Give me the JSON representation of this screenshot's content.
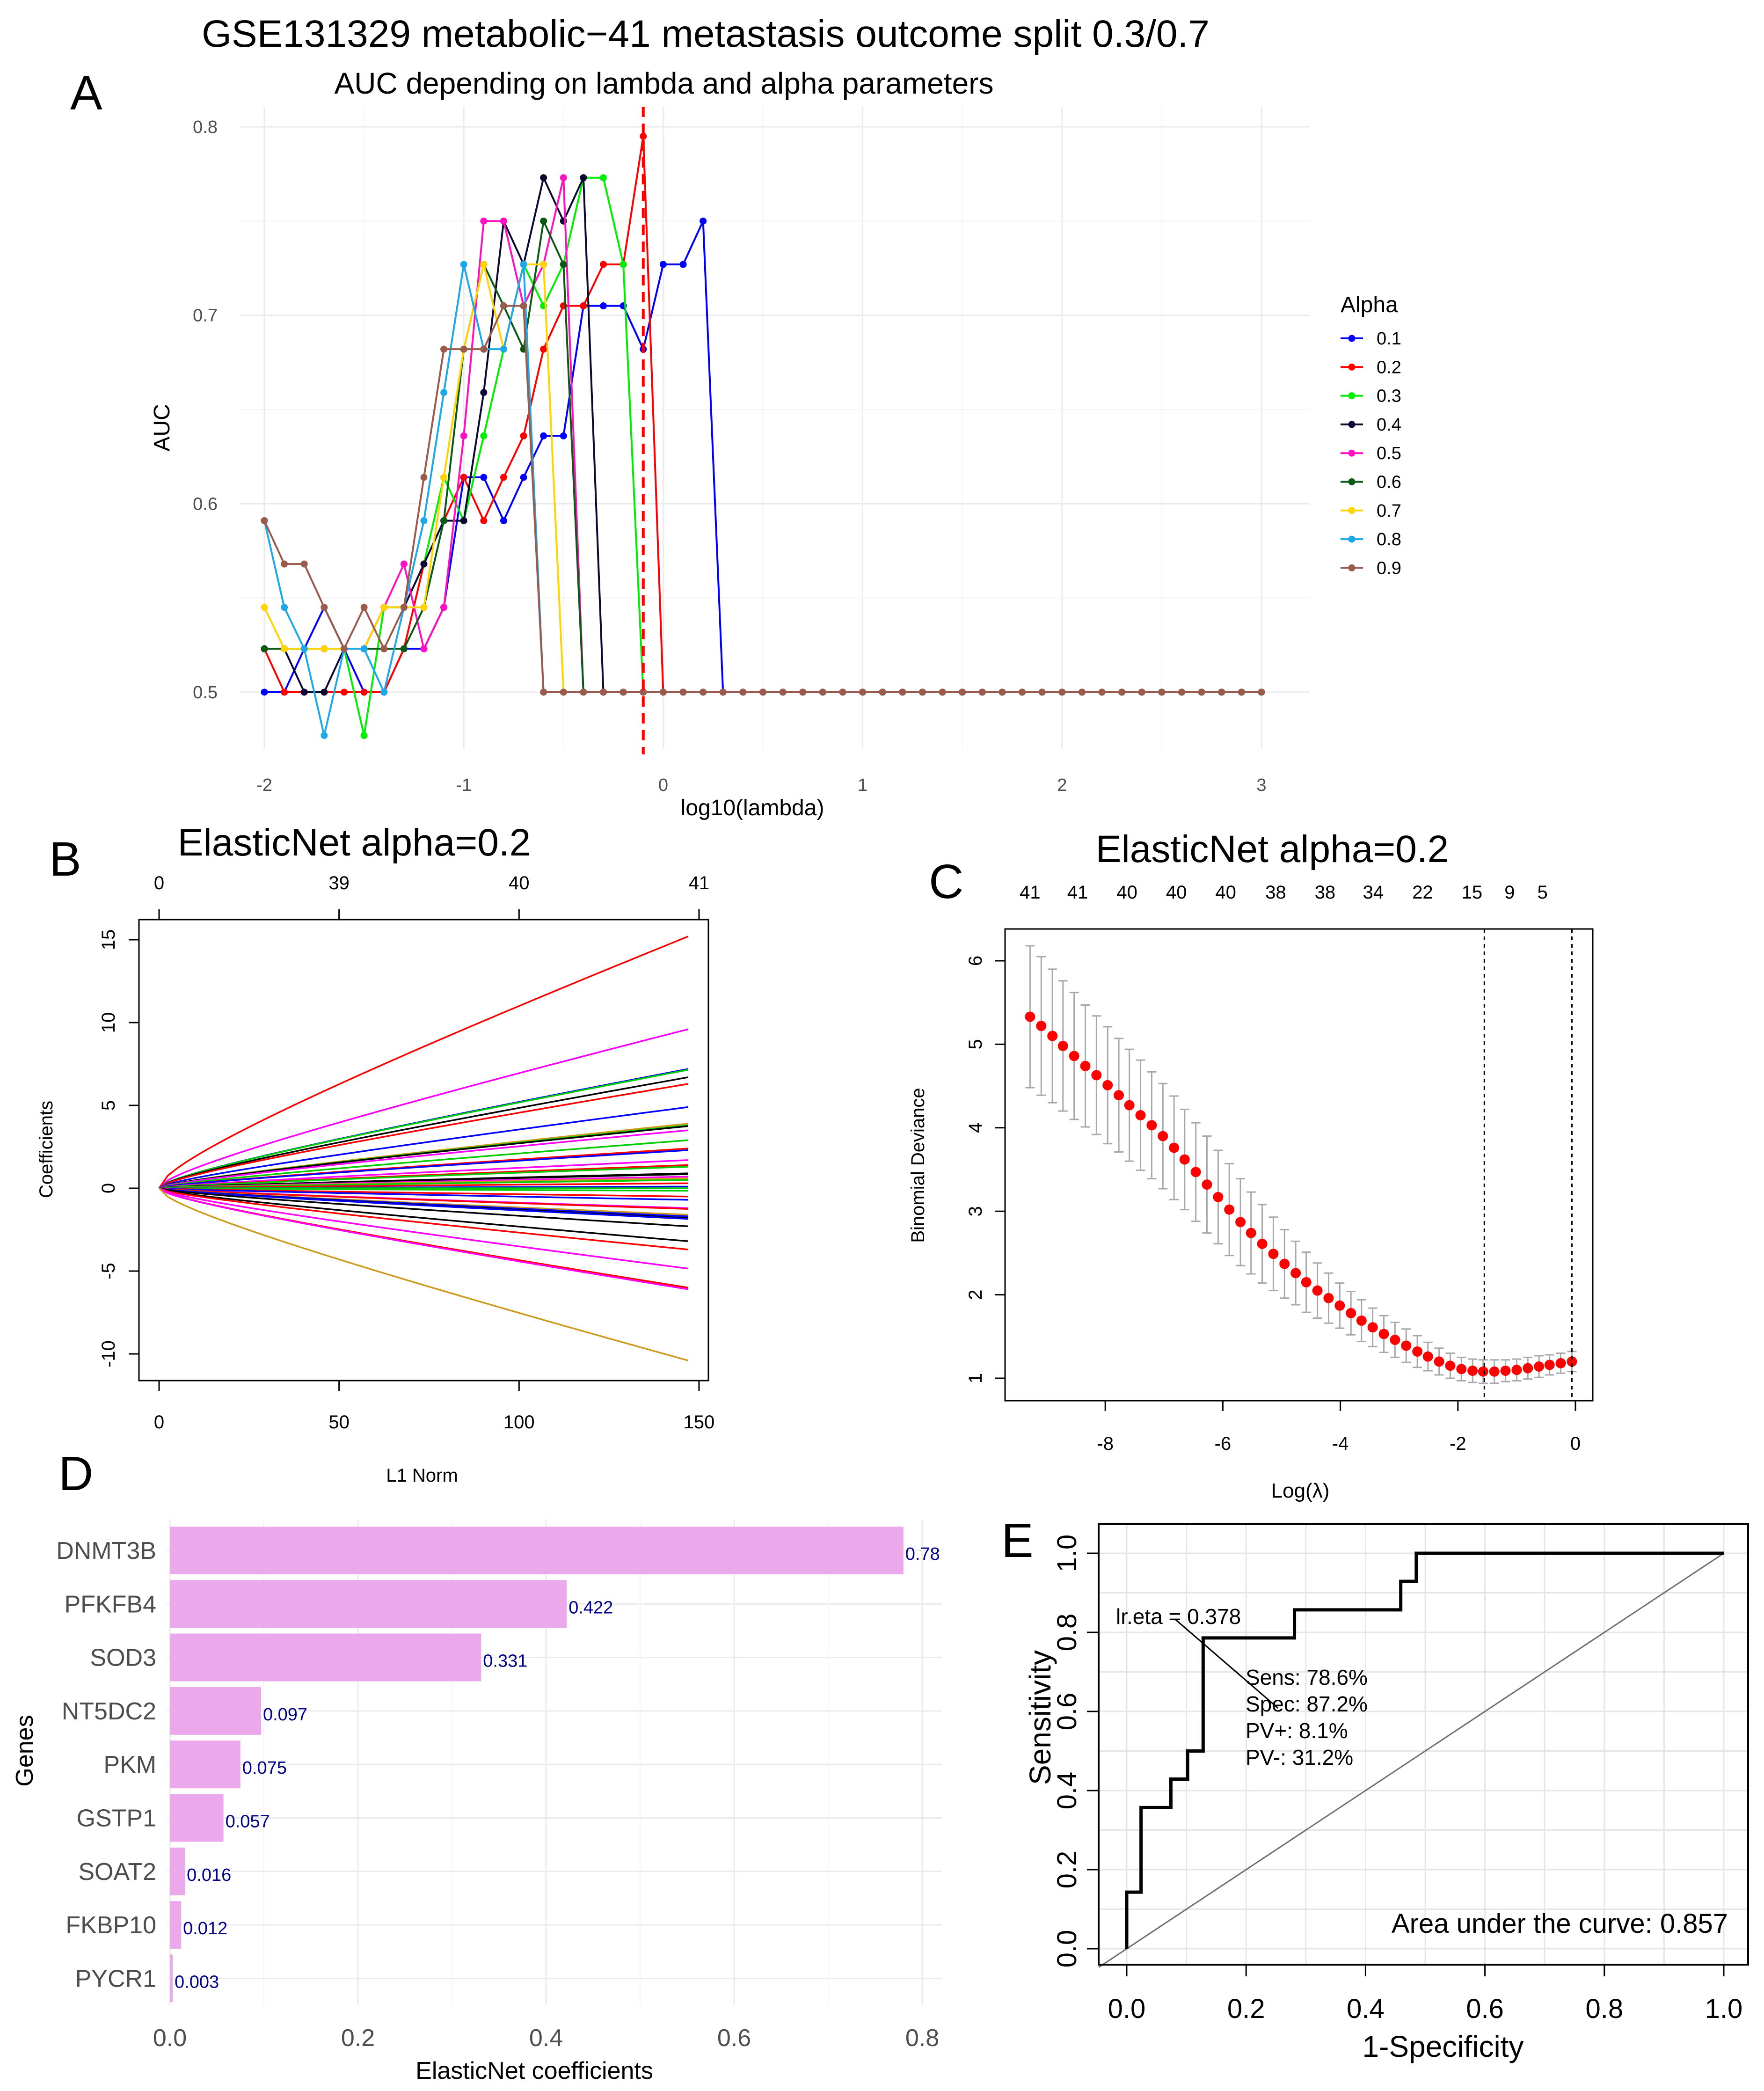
{
  "figure_title": "GSE131329 metabolic−41 metastasis outcome split 0.3/0.7",
  "panel_labels": [
    "A",
    "B",
    "C",
    "D",
    "E"
  ],
  "chart_data": [
    {
      "panel": "A",
      "type": "line",
      "title": "AUC depending on lambda and alpha parameters",
      "xlabel": "log10(lambda)",
      "ylabel": "AUC",
      "xlim": [
        -2,
        3
      ],
      "ylim": [
        0.477,
        0.795
      ],
      "xticks": [
        -2,
        -1,
        0,
        1,
        2,
        3
      ],
      "yticks": [
        0.5,
        0.6,
        0.7,
        0.8
      ],
      "grid": true,
      "legend_title": "Alpha",
      "legend_position": "right",
      "vline": {
        "x": -0.1,
        "color": "#FF0000",
        "style": "dashed"
      },
      "x": [
        -2.0,
        -1.9,
        -1.8,
        -1.7,
        -1.6,
        -1.5,
        -1.4,
        -1.3,
        -1.2,
        -1.1,
        -1.0,
        -0.9,
        -0.8,
        -0.7,
        -0.6,
        -0.5,
        -0.4,
        -0.3,
        -0.2,
        -0.1,
        0.0,
        0.1,
        0.2,
        0.3,
        0.4,
        0.5,
        0.6,
        0.7,
        0.8,
        0.9,
        1.0,
        1.1,
        1.2,
        1.3,
        1.4,
        1.5,
        1.6,
        1.7,
        1.8,
        1.9,
        2.0,
        2.1,
        2.2,
        2.3,
        2.4,
        2.5,
        2.6,
        2.7,
        2.8,
        2.9,
        3.0
      ],
      "series": [
        {
          "name": "0.1",
          "color": "#0000FF",
          "values": [
            0.5,
            0.5,
            0.523,
            0.545,
            0.523,
            0.5,
            0.5,
            0.523,
            0.523,
            0.545,
            0.614,
            0.614,
            0.591,
            0.614,
            0.636,
            0.636,
            0.705,
            0.705,
            0.705,
            0.682,
            0.727,
            0.727,
            0.75,
            0.5,
            0.5,
            0.5,
            0.5,
            0.5,
            0.5,
            0.5,
            0.5,
            0.5,
            0.5,
            0.5,
            0.5,
            0.5,
            0.5,
            0.5,
            0.5,
            0.5,
            0.5,
            0.5,
            0.5,
            0.5,
            0.5,
            0.5,
            0.5,
            0.5,
            0.5,
            0.5,
            0.5
          ]
        },
        {
          "name": "0.2",
          "color": "#FF0000",
          "values": [
            0.523,
            0.5,
            0.5,
            0.5,
            0.5,
            0.5,
            0.5,
            0.523,
            0.568,
            0.591,
            0.614,
            0.591,
            0.614,
            0.636,
            0.682,
            0.705,
            0.705,
            0.727,
            0.727,
            0.795,
            0.5,
            0.5,
            0.5,
            0.5,
            0.5,
            0.5,
            0.5,
            0.5,
            0.5,
            0.5,
            0.5,
            0.5,
            0.5,
            0.5,
            0.5,
            0.5,
            0.5,
            0.5,
            0.5,
            0.5,
            0.5,
            0.5,
            0.5,
            0.5,
            0.5,
            0.5,
            0.5,
            0.5,
            0.5,
            0.5,
            0.5
          ]
        },
        {
          "name": "0.3",
          "color": "#00EE00",
          "values": [
            0.523,
            0.523,
            0.523,
            0.523,
            0.523,
            0.477,
            0.545,
            0.545,
            0.568,
            0.614,
            0.591,
            0.636,
            0.682,
            0.727,
            0.705,
            0.727,
            0.773,
            0.773,
            0.727,
            0.5,
            0.5,
            0.5,
            0.5,
            0.5,
            0.5,
            0.5,
            0.5,
            0.5,
            0.5,
            0.5,
            0.5,
            0.5,
            0.5,
            0.5,
            0.5,
            0.5,
            0.5,
            0.5,
            0.5,
            0.5,
            0.5,
            0.5,
            0.5,
            0.5,
            0.5,
            0.5,
            0.5,
            0.5,
            0.5,
            0.5,
            0.5
          ]
        },
        {
          "name": "0.4",
          "color": "#0A0A33",
          "values": [
            0.523,
            0.523,
            0.5,
            0.5,
            0.523,
            0.523,
            0.545,
            0.545,
            0.568,
            0.591,
            0.591,
            0.659,
            0.75,
            0.727,
            0.773,
            0.75,
            0.773,
            0.5,
            0.5,
            0.5,
            0.5,
            0.5,
            0.5,
            0.5,
            0.5,
            0.5,
            0.5,
            0.5,
            0.5,
            0.5,
            0.5,
            0.5,
            0.5,
            0.5,
            0.5,
            0.5,
            0.5,
            0.5,
            0.5,
            0.5,
            0.5,
            0.5,
            0.5,
            0.5,
            0.5,
            0.5,
            0.5,
            0.5,
            0.5,
            0.5,
            0.5
          ]
        },
        {
          "name": "0.5",
          "color": "#FF10C0",
          "values": [
            0.523,
            0.523,
            0.523,
            0.523,
            0.523,
            0.523,
            0.545,
            0.568,
            0.523,
            0.545,
            0.636,
            0.75,
            0.75,
            0.705,
            0.727,
            0.773,
            0.5,
            0.5,
            0.5,
            0.5,
            0.5,
            0.5,
            0.5,
            0.5,
            0.5,
            0.5,
            0.5,
            0.5,
            0.5,
            0.5,
            0.5,
            0.5,
            0.5,
            0.5,
            0.5,
            0.5,
            0.5,
            0.5,
            0.5,
            0.5,
            0.5,
            0.5,
            0.5,
            0.5,
            0.5,
            0.5,
            0.5,
            0.5,
            0.5,
            0.5,
            0.5
          ]
        },
        {
          "name": "0.6",
          "color": "#0B5A14",
          "values": [
            0.523,
            0.523,
            0.523,
            0.523,
            0.523,
            0.523,
            0.523,
            0.523,
            0.545,
            0.591,
            0.682,
            0.727,
            0.705,
            0.682,
            0.75,
            0.727,
            0.5,
            0.5,
            0.5,
            0.5,
            0.5,
            0.5,
            0.5,
            0.5,
            0.5,
            0.5,
            0.5,
            0.5,
            0.5,
            0.5,
            0.5,
            0.5,
            0.5,
            0.5,
            0.5,
            0.5,
            0.5,
            0.5,
            0.5,
            0.5,
            0.5,
            0.5,
            0.5,
            0.5,
            0.5,
            0.5,
            0.5,
            0.5,
            0.5,
            0.5,
            0.5
          ]
        },
        {
          "name": "0.7",
          "color": "#FFD400",
          "values": [
            0.545,
            0.523,
            0.523,
            0.523,
            0.523,
            0.523,
            0.545,
            0.545,
            0.545,
            0.614,
            0.682,
            0.727,
            0.682,
            0.727,
            0.727,
            0.5,
            0.5,
            0.5,
            0.5,
            0.5,
            0.5,
            0.5,
            0.5,
            0.5,
            0.5,
            0.5,
            0.5,
            0.5,
            0.5,
            0.5,
            0.5,
            0.5,
            0.5,
            0.5,
            0.5,
            0.5,
            0.5,
            0.5,
            0.5,
            0.5,
            0.5,
            0.5,
            0.5,
            0.5,
            0.5,
            0.5,
            0.5,
            0.5,
            0.5,
            0.5,
            0.5
          ]
        },
        {
          "name": "0.8",
          "color": "#1EA8E8",
          "values": [
            0.591,
            0.545,
            0.523,
            0.477,
            0.523,
            0.523,
            0.5,
            0.545,
            0.591,
            0.659,
            0.727,
            0.682,
            0.682,
            0.727,
            0.5,
            0.5,
            0.5,
            0.5,
            0.5,
            0.5,
            0.5,
            0.5,
            0.5,
            0.5,
            0.5,
            0.5,
            0.5,
            0.5,
            0.5,
            0.5,
            0.5,
            0.5,
            0.5,
            0.5,
            0.5,
            0.5,
            0.5,
            0.5,
            0.5,
            0.5,
            0.5,
            0.5,
            0.5,
            0.5,
            0.5,
            0.5,
            0.5,
            0.5,
            0.5,
            0.5,
            0.5
          ]
        },
        {
          "name": "0.9",
          "color": "#9A5B4C",
          "values": [
            0.591,
            0.568,
            0.568,
            0.545,
            0.523,
            0.545,
            0.523,
            0.545,
            0.614,
            0.682,
            0.682,
            0.682,
            0.705,
            0.705,
            0.5,
            0.5,
            0.5,
            0.5,
            0.5,
            0.5,
            0.5,
            0.5,
            0.5,
            0.5,
            0.5,
            0.5,
            0.5,
            0.5,
            0.5,
            0.5,
            0.5,
            0.5,
            0.5,
            0.5,
            0.5,
            0.5,
            0.5,
            0.5,
            0.5,
            0.5,
            0.5,
            0.5,
            0.5,
            0.5,
            0.5,
            0.5,
            0.5,
            0.5,
            0.5,
            0.5,
            0.5
          ]
        }
      ]
    },
    {
      "panel": "B",
      "type": "line",
      "title": "ElasticNet alpha=0.2",
      "xlabel": "L1 Norm",
      "ylabel": "Coefficients",
      "xlim": [
        0,
        150
      ],
      "ylim": [
        -10.5,
        15.5
      ],
      "xticks": [
        0,
        50,
        100,
        150
      ],
      "yticks": [
        -10,
        -5,
        0,
        5,
        10,
        15
      ],
      "top_axis": {
        "ticks": [
          0,
          50,
          100,
          150
        ],
        "labels": [
          "0",
          "39",
          "40",
          "41"
        ]
      },
      "grid": false,
      "max_l1_norm": 147,
      "paths": [
        {
          "color": "#FF0000",
          "end": 15.2
        },
        {
          "color": "#FF00FF",
          "end": 9.6
        },
        {
          "color": "#0000FF",
          "end": 7.2
        },
        {
          "color": "#00CD00",
          "end": 7.15
        },
        {
          "color": "#000000",
          "end": 6.7
        },
        {
          "color": "#FF0000",
          "end": 6.3
        },
        {
          "color": "#0000FF",
          "end": 4.9
        },
        {
          "color": "#CD9B1D",
          "end": 3.9
        },
        {
          "color": "#00CD00",
          "end": 3.8
        },
        {
          "color": "#000000",
          "end": 3.75
        },
        {
          "color": "#FF00FF",
          "end": 3.5
        },
        {
          "color": "#00CD00",
          "end": 2.9
        },
        {
          "color": "#FF0000",
          "end": 2.4
        },
        {
          "color": "#0000FF",
          "end": 2.3
        },
        {
          "color": "#FF00FF",
          "end": 1.7
        },
        {
          "color": "#FF0000",
          "end": 1.4
        },
        {
          "color": "#00CD00",
          "end": 1.3
        },
        {
          "color": "#000000",
          "end": 0.9
        },
        {
          "color": "#000000",
          "end": 0.85
        },
        {
          "color": "#FF00FF",
          "end": 0.7
        },
        {
          "color": "#CD9B1D",
          "end": 0.6
        },
        {
          "color": "#00CD00",
          "end": 0.5
        },
        {
          "color": "#FF0000",
          "end": 0.3
        },
        {
          "color": "#0000FF",
          "end": 0.1
        },
        {
          "color": "#00CD00",
          "end": 0.0
        },
        {
          "color": "#00CD00",
          "end": -0.15
        },
        {
          "color": "#FF0000",
          "end": -0.5
        },
        {
          "color": "#0000FF",
          "end": -0.7
        },
        {
          "color": "#FF00FF",
          "end": -1.2
        },
        {
          "color": "#FF0000",
          "end": -1.25
        },
        {
          "color": "#CD9B1D",
          "end": -1.6
        },
        {
          "color": "#0000FF",
          "end": -1.7
        },
        {
          "color": "#000000",
          "end": -1.8
        },
        {
          "color": "#0000FF",
          "end": -1.85
        },
        {
          "color": "#000000",
          "end": -2.3
        },
        {
          "color": "#000000",
          "end": -3.2
        },
        {
          "color": "#FF0000",
          "end": -3.7
        },
        {
          "color": "#FF00FF",
          "end": -4.85
        },
        {
          "color": "#FF0000",
          "end": -6.0
        },
        {
          "color": "#FF00FF",
          "end": -6.1
        },
        {
          "color": "#CD9B1D",
          "end": -10.4
        }
      ]
    },
    {
      "panel": "C",
      "type": "scatter",
      "title": "ElasticNet alpha=0.2",
      "xlabel": "Log(λ)",
      "ylabel": "Binomial Deviance",
      "xticks": [
        -8,
        -6,
        -4,
        -2,
        0
      ],
      "yticks": [
        1,
        2,
        3,
        4,
        5,
        6
      ],
      "grid": false,
      "point_color": "#FF0000",
      "errorbar_color": "#A9A9A9",
      "top_axis": {
        "positions": [
          -9.28,
          -8.47,
          -7.63,
          -6.79,
          -5.95,
          -5.1,
          -4.26,
          -3.44,
          -2.6,
          -1.76,
          -1.12,
          -0.56
        ],
        "labels": [
          "41",
          "41",
          "40",
          "40",
          "40",
          "38",
          "38",
          "34",
          "22",
          "15",
          "9",
          "5"
        ]
      },
      "vlines": [
        -1.55,
        -0.06
      ],
      "x": [
        -9.28,
        -9.09,
        -8.9,
        -8.72,
        -8.53,
        -8.34,
        -8.15,
        -7.96,
        -7.77,
        -7.59,
        -7.4,
        -7.21,
        -7.02,
        -6.83,
        -6.65,
        -6.46,
        -6.27,
        -6.08,
        -5.89,
        -5.7,
        -5.52,
        -5.33,
        -5.14,
        -4.95,
        -4.76,
        -4.58,
        -4.39,
        -4.2,
        -4.01,
        -3.82,
        -3.64,
        -3.45,
        -3.26,
        -3.07,
        -2.88,
        -2.69,
        -2.51,
        -2.32,
        -2.13,
        -1.94,
        -1.75,
        -1.57,
        -1.38,
        -1.19,
        -1.0,
        -0.81,
        -0.62,
        -0.44,
        -0.25,
        -0.06
      ],
      "mean": [
        5.33,
        5.22,
        5.1,
        4.98,
        4.86,
        4.74,
        4.63,
        4.51,
        4.39,
        4.27,
        4.15,
        4.03,
        3.9,
        3.76,
        3.62,
        3.47,
        3.32,
        3.17,
        3.02,
        2.87,
        2.74,
        2.61,
        2.49,
        2.37,
        2.26,
        2.15,
        2.05,
        1.96,
        1.87,
        1.78,
        1.69,
        1.61,
        1.53,
        1.46,
        1.39,
        1.32,
        1.26,
        1.2,
        1.15,
        1.11,
        1.09,
        1.08,
        1.08,
        1.09,
        1.1,
        1.12,
        1.14,
        1.16,
        1.18,
        1.2
      ],
      "se": [
        0.85,
        0.83,
        0.8,
        0.78,
        0.76,
        0.73,
        0.71,
        0.7,
        0.68,
        0.67,
        0.66,
        0.64,
        0.63,
        0.62,
        0.6,
        0.59,
        0.58,
        0.56,
        0.55,
        0.52,
        0.49,
        0.47,
        0.44,
        0.41,
        0.38,
        0.36,
        0.33,
        0.3,
        0.27,
        0.26,
        0.25,
        0.23,
        0.22,
        0.21,
        0.2,
        0.19,
        0.17,
        0.16,
        0.15,
        0.14,
        0.14,
        0.14,
        0.14,
        0.13,
        0.13,
        0.13,
        0.13,
        0.12,
        0.12,
        0.12
      ]
    },
    {
      "panel": "D",
      "type": "bar",
      "orientation": "horizontal",
      "xlabel": "ElasticNet coefficients",
      "ylabel": "Genes",
      "xlim": [
        0,
        0.82
      ],
      "xticks": [
        "0.0",
        "0.2",
        "0.4",
        "0.6",
        "0.8"
      ],
      "grid": true,
      "bar_color": "#EBA9EB",
      "label_color": "#00008B",
      "categories": [
        "DNMT3B",
        "PFKFB4",
        "SOD3",
        "NT5DC2",
        "PKM",
        "GSTP1",
        "SOAT2",
        "FKBP10",
        "PYCR1"
      ],
      "values": [
        0.78,
        0.422,
        0.331,
        0.097,
        0.075,
        0.057,
        0.016,
        0.012,
        0.003
      ],
      "value_labels": [
        "0.78",
        "0.422",
        "0.331",
        "0.097",
        "0.075",
        "0.057",
        "0.016",
        "0.012",
        "0.003"
      ]
    },
    {
      "panel": "E",
      "type": "line",
      "xlabel": "1-Specificity",
      "ylabel": "Sensitivity",
      "xticks": [
        "0.0",
        "0.2",
        "0.4",
        "0.6",
        "0.8",
        "1.0"
      ],
      "yticks": [
        "0.0",
        "0.2",
        "0.4",
        "0.6",
        "0.8",
        "1.0"
      ],
      "grid": true,
      "roc": {
        "x": [
          0,
          0,
          0.024,
          0.024,
          0.074,
          0.074,
          0.102,
          0.102,
          0.128,
          0.128,
          0.281,
          0.281,
          0.459,
          0.459,
          0.485,
          0.485,
          1.0
        ],
        "y": [
          0,
          0.143,
          0.143,
          0.357,
          0.357,
          0.429,
          0.429,
          0.5,
          0.5,
          0.786,
          0.786,
          0.857,
          0.857,
          0.929,
          0.929,
          1.0,
          1.0
        ]
      },
      "cutoff_point": {
        "x": 0.128,
        "y": 0.786
      },
      "cutoff_label": "lr.eta = 0.378",
      "stats": [
        "Sens: 78.6%",
        "Spec: 87.2%",
        "PV+: 8.1%",
        "PV-: 31.2%"
      ],
      "auc_label": "Area under the curve: 0.857"
    }
  ]
}
